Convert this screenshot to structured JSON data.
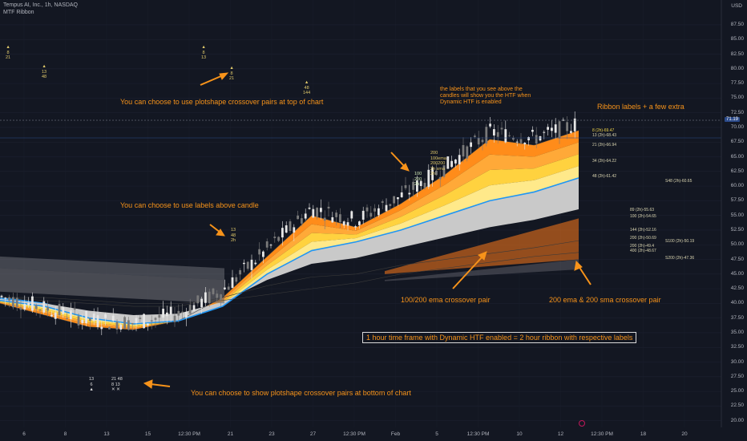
{
  "header": {
    "symbol": "Tempus AI, Inc., 1h, NASDAQ",
    "indicator": "MTF Ribbon",
    "currency": "USD"
  },
  "colors": {
    "background": "#131722",
    "annotation": "#f7931a",
    "blue": "#2196f3",
    "orange": "#ff8c1a",
    "yellow": "#ffe066",
    "up": "#e6e6e6",
    "down": "#7a7a7a"
  },
  "y_axis": {
    "ticks": [
      "87.50",
      "85.00",
      "82.50",
      "80.00",
      "77.50",
      "75.00",
      "72.50",
      "70.00",
      "67.50",
      "65.00",
      "62.50",
      "60.00",
      "57.50",
      "55.00",
      "52.50",
      "50.00",
      "47.50",
      "45.00",
      "42.50",
      "40.00",
      "37.50",
      "35.00",
      "32.50",
      "30.00",
      "27.50",
      "25.00",
      "22.50",
      "20.00"
    ],
    "last_price": "71.19",
    "last_price_color": "#2b4a8a"
  },
  "x_axis": {
    "ticks": [
      "6",
      "8",
      "13",
      "15",
      "12:30 PM",
      "21",
      "23",
      "27",
      "12:30 PM",
      "Feb",
      "5",
      "12:30 PM",
      "10",
      "12",
      "12:30 PM",
      "18",
      "20"
    ]
  },
  "annotations": {
    "top_pairs": "You can choose to use plotshape crossover pairs at top of chart",
    "labels_above": "You can choose to use labels above candle",
    "htf_note": "the labels that you see above the candles will show you the HTF when Dynamic HTF is enabled",
    "ribbon_labels": "Ribbon labels + a few extra",
    "ema_pair": "100/200 ema crossover pair",
    "ema_sma_pair": "200 ema & 200 sma crossover pair",
    "bottom_pairs": "You can choose to show plotshape crossover pairs at bottom of chart",
    "timeframe_box": "1 hour time frame with Dynamic HTF enabled = 2 hour ribbon with respective labels"
  },
  "ribbon_labels": [
    "8 (2h)-69.47",
    "13 (2h)-68.43",
    "21 (2h)-66.94",
    "34 (2h)-64.22",
    "48 (2h)-61.42",
    "S48 (2h)-60.65",
    "89 (2h)-55.63",
    "100 (2h)-54.65",
    "144 (2h)-52.16",
    "200 (2h)-50.69",
    "S100 (2h)-50.19",
    "200 (2h)-49.4",
    "400 (2h)-48.67",
    "S200 (2h)-47.36"
  ],
  "top_shapes": [
    {
      "sym": "▲",
      "a": "8",
      "b": "21"
    },
    {
      "sym": "▲",
      "a": "13",
      "b": "48"
    },
    {
      "sym": "▲",
      "a": "8",
      "b": "13"
    },
    {
      "sym": "▲",
      "a": "8",
      "b": "21"
    },
    {
      "sym": "▲",
      "a": "48",
      "b": "144"
    }
  ],
  "candle_labels": {
    "a": [
      "100",
      "200",
      "2h"
    ],
    "b": [
      "200",
      "100ema",
      "200200",
      "2h sma",
      "2h"
    ],
    "c": [
      "13",
      "48",
      "2h"
    ]
  },
  "bottom_shapes": {
    "left": [
      "13",
      "6",
      "▲"
    ],
    "right": [
      "21",
      "48",
      "8",
      "13",
      "✕",
      "✕"
    ]
  },
  "chart_data": {
    "type": "line",
    "title": "Tempus AI, Inc., 1h, NASDAQ",
    "ylim": [
      19,
      89
    ],
    "grid": true,
    "series": [
      {
        "name": "8 (2h)",
        "values": [
          40,
          38,
          36,
          35.5,
          37,
          41,
          48,
          55,
          53,
          57,
          62,
          68,
          67,
          69.5
        ]
      },
      {
        "name": "48 (2h)",
        "values": [
          40.5,
          39.5,
          37.5,
          36.5,
          37,
          39.5,
          45,
          49,
          50.5,
          52.5,
          55,
          57.5,
          59,
          61.4
        ]
      },
      {
        "name": "200 ema (2h)",
        "values": [
          41,
          40.5,
          40,
          39.5,
          39.5,
          41,
          43,
          44.5,
          45,
          46.5,
          47.5,
          48.5,
          49.5,
          50.7
        ]
      },
      {
        "name": "200 sma (2h)",
        "values": [
          41,
          41,
          40.5,
          40,
          40,
          40.5,
          41.5,
          42.5,
          43.5,
          45,
          46,
          47,
          48,
          48.7
        ]
      }
    ]
  }
}
